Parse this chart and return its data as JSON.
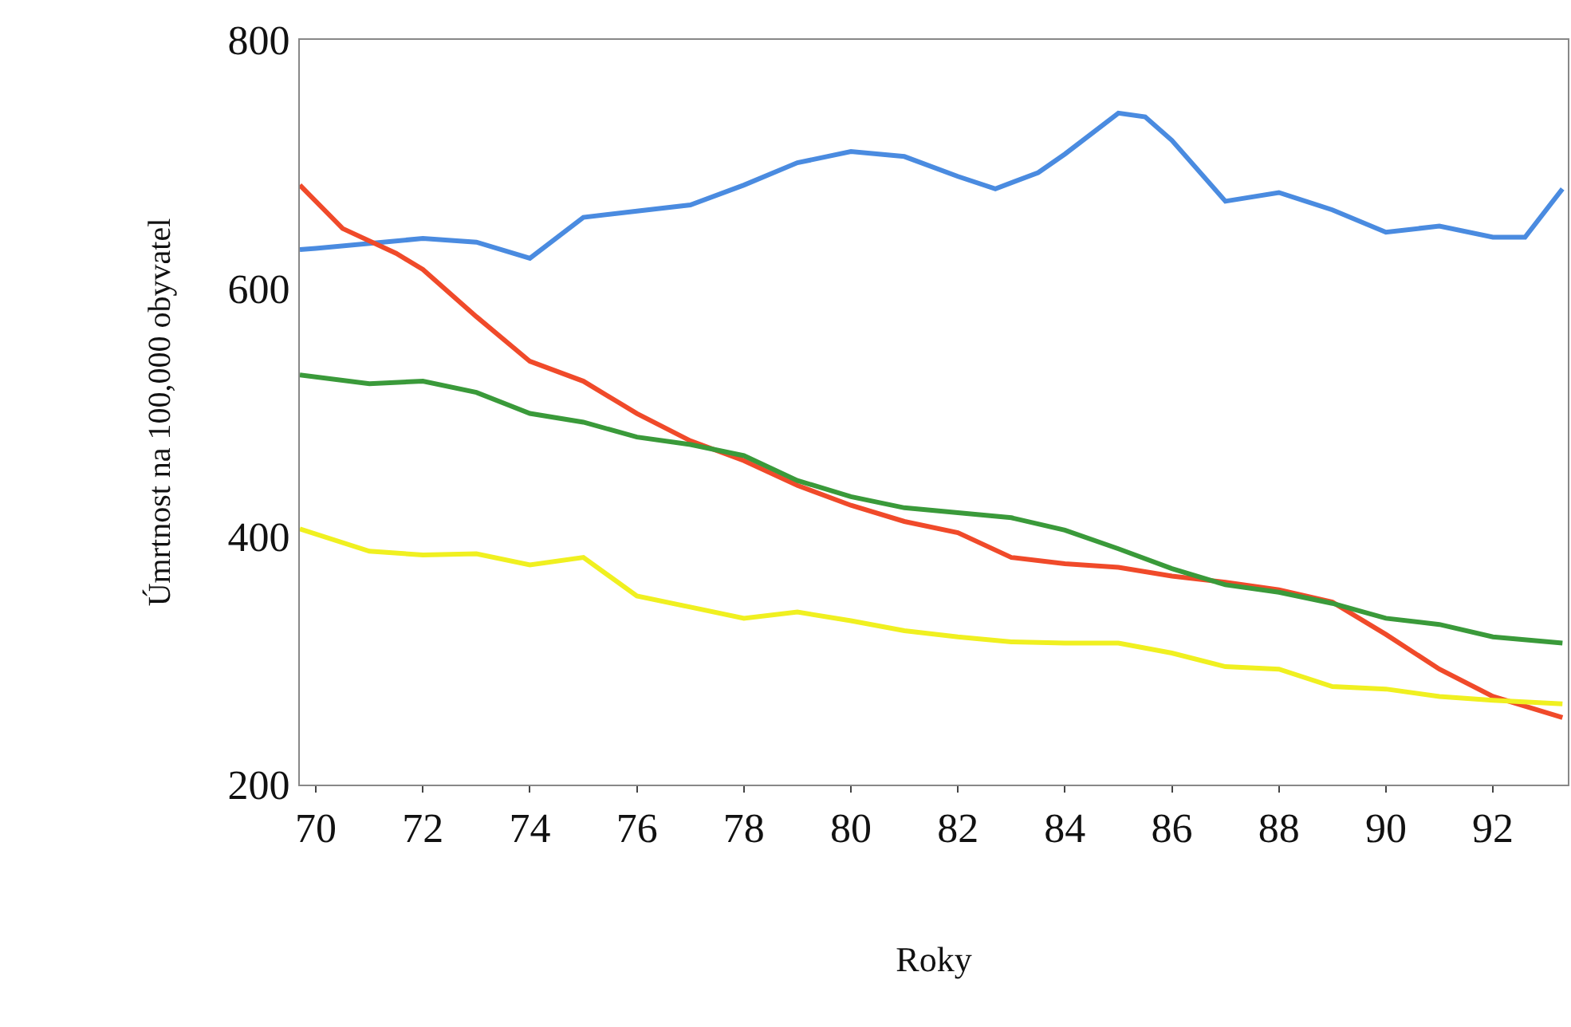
{
  "chart_data": {
    "type": "line",
    "xlabel": "Roky",
    "ylabel": "Úmrtnost na 100,000 obyvatel",
    "xlim": [
      69.7,
      93.4
    ],
    "ylim": [
      200,
      800
    ],
    "xticks": [
      70,
      72,
      74,
      76,
      78,
      80,
      82,
      84,
      86,
      88,
      90,
      92
    ],
    "yticks": [
      200,
      400,
      600,
      800
    ],
    "line_style": "solid",
    "marker": "none",
    "series": [
      {
        "color": "#4a8be0",
        "x": [
          69.7,
          70,
          72,
          73,
          74,
          75,
          76,
          77,
          78,
          79,
          80,
          81,
          82,
          82.7,
          83.5,
          84,
          85,
          85.5,
          86,
          87,
          88,
          89,
          90,
          91,
          92,
          92.6,
          93.3
        ],
        "values": [
          631,
          632,
          640,
          637,
          624,
          657,
          662,
          667,
          683,
          701,
          710,
          706,
          690,
          680,
          693,
          708,
          741,
          738,
          719,
          670,
          677,
          663,
          645,
          650,
          641,
          641,
          680
        ]
      },
      {
        "color": "#f04a2a",
        "x": [
          69.7,
          70.5,
          71.5,
          72,
          73,
          74,
          75,
          76,
          77,
          78,
          79,
          80,
          81,
          82,
          83,
          84,
          85,
          86,
          87,
          88,
          89,
          90,
          91,
          92,
          93.3
        ],
        "values": [
          683,
          648,
          628,
          615,
          577,
          541,
          525,
          499,
          477,
          461,
          441,
          425,
          412,
          403,
          383,
          378,
          375,
          368,
          363,
          357,
          347,
          321,
          293,
          271,
          254
        ]
      },
      {
        "color": "#3a9a3a",
        "x": [
          69.7,
          71,
          72,
          73,
          74,
          75,
          76,
          77,
          78,
          79,
          80,
          81,
          82,
          83,
          84,
          85,
          86,
          87,
          88,
          89,
          90,
          91,
          92,
          93.3
        ],
        "values": [
          530,
          523,
          525,
          516,
          499,
          492,
          480,
          474,
          465,
          445,
          432,
          423,
          419,
          415,
          405,
          390,
          374,
          361,
          355,
          346,
          334,
          329,
          319,
          314
        ]
      },
      {
        "color": "#f0f020",
        "x": [
          69.7,
          71,
          72,
          73,
          74,
          75,
          76,
          77,
          78,
          79,
          80,
          81,
          82,
          83,
          84,
          85,
          86,
          87,
          88,
          89,
          90,
          91,
          92,
          93.3
        ],
        "values": [
          406,
          388,
          385,
          386,
          377,
          383,
          352,
          343,
          334,
          339,
          332,
          324,
          319,
          315,
          314,
          314,
          306,
          295,
          293,
          279,
          277,
          271,
          268,
          265
        ]
      }
    ]
  }
}
